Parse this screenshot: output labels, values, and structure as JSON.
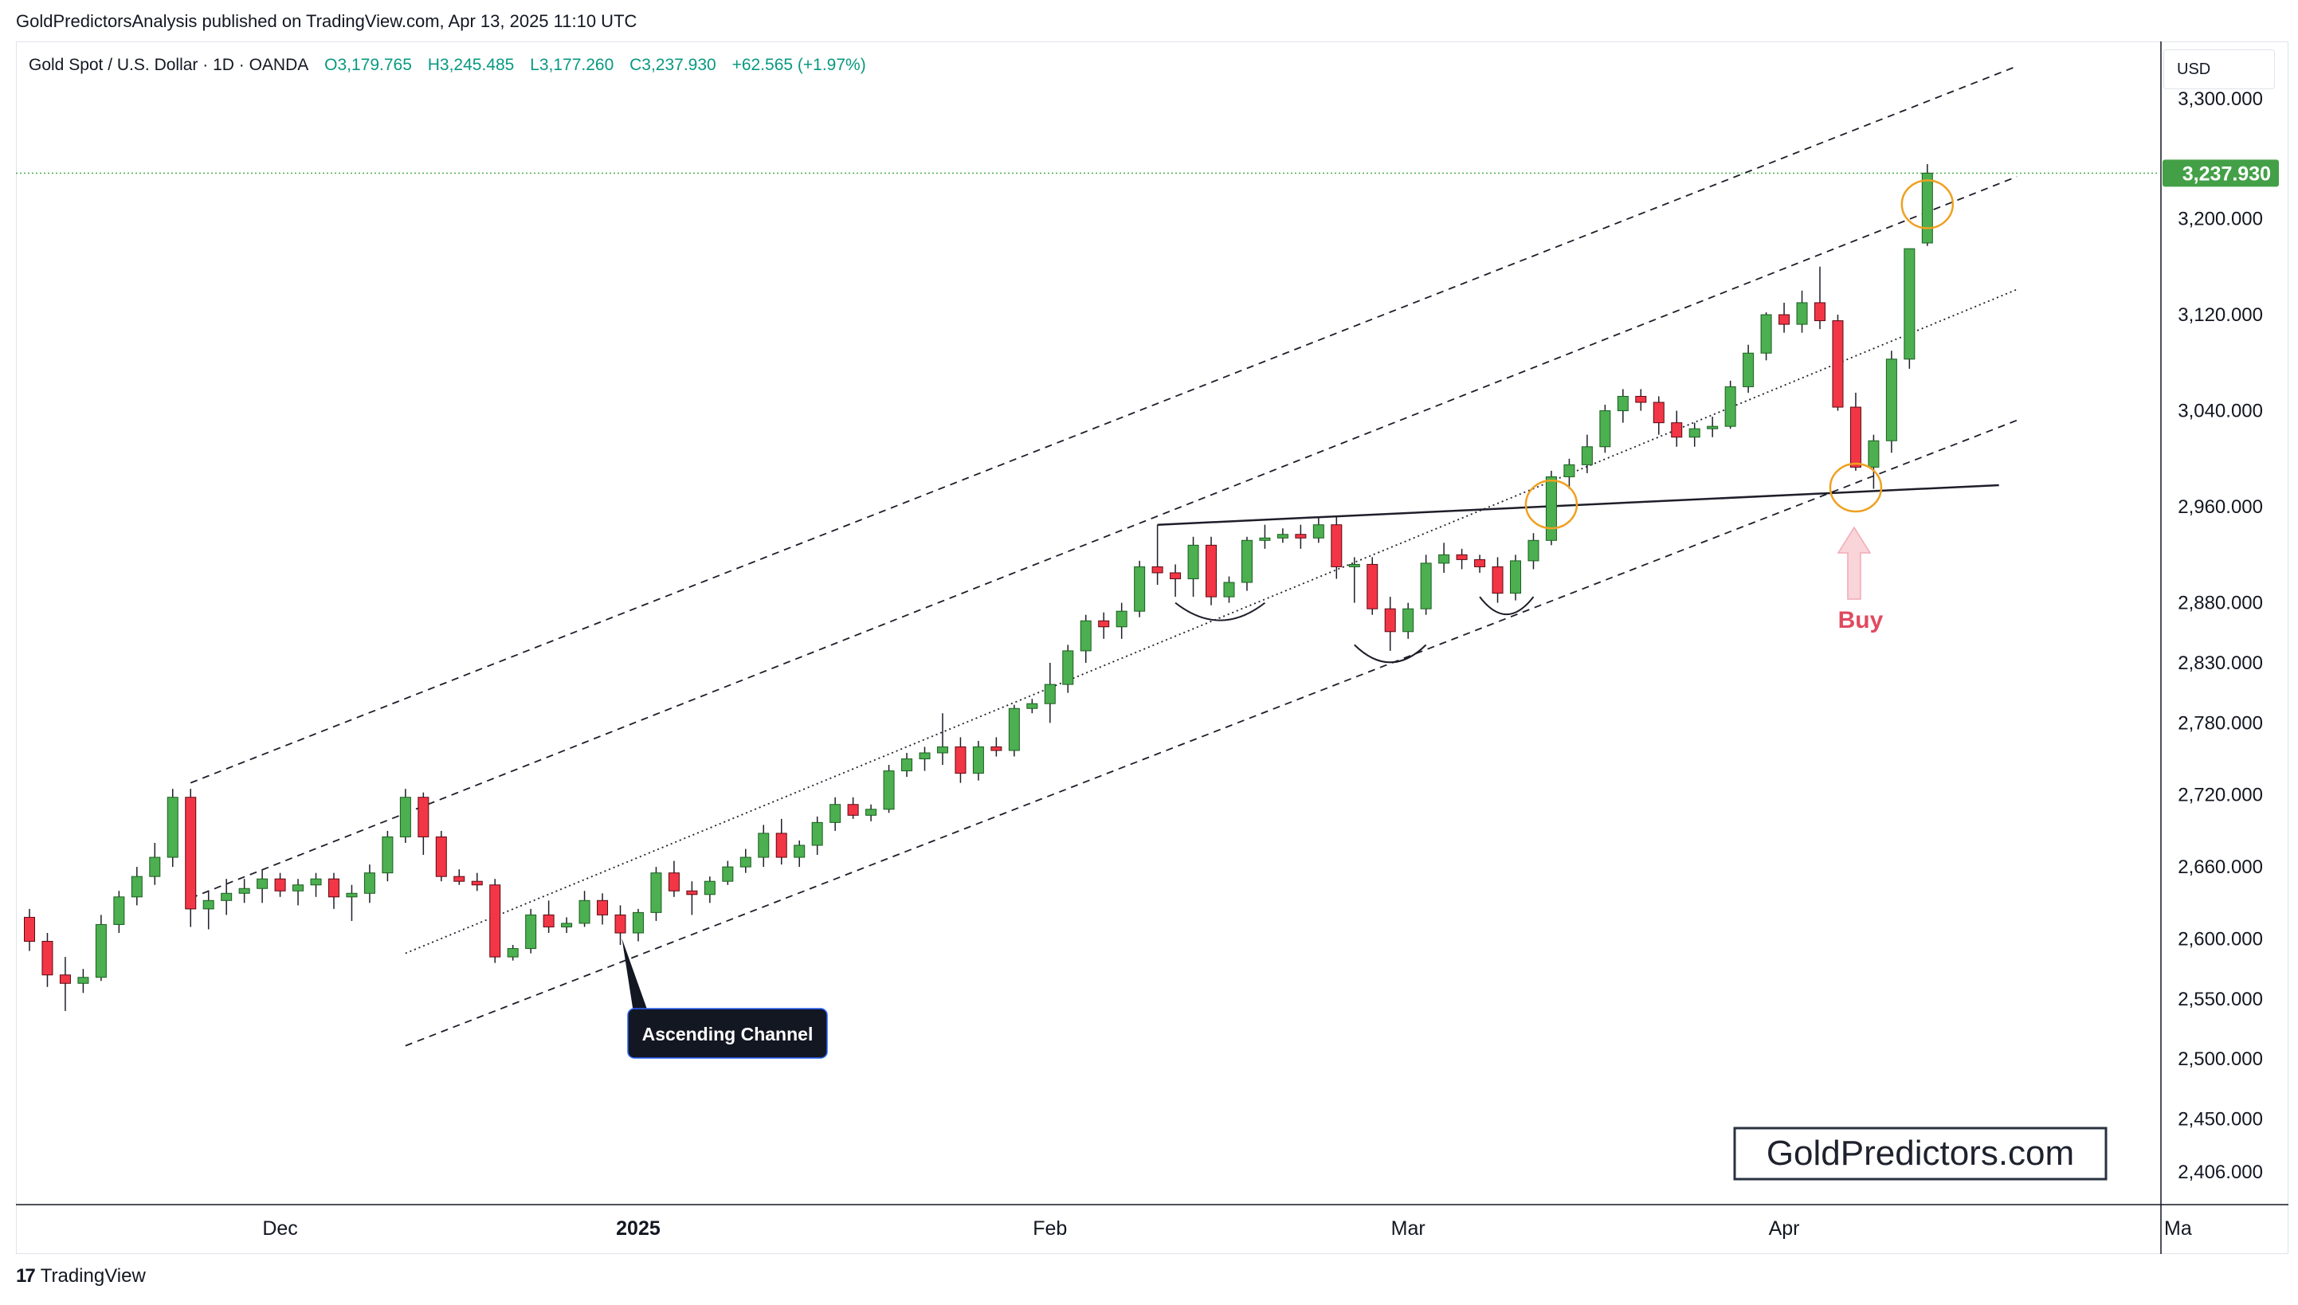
{
  "header": {
    "publisher": "GoldPredictorsAnalysis published on TradingView.com, Apr 13, 2025 11:10 UTC"
  },
  "symbol": {
    "name": "Gold Spot / U.S. Dollar · 1D · OANDA",
    "open": "O3,179.765",
    "high": "H3,245.485",
    "low": "L3,177.260",
    "close": "C3,237.930",
    "change": "+62.565 (+1.97%)"
  },
  "currency": "USD",
  "footer": {
    "brand": "TradingView",
    "logo_glyph": "17"
  },
  "colors": {
    "up": "#4caf50",
    "down": "#f23645",
    "price_tag": "#43a047",
    "highlight": "#f0a020",
    "buy": "#e04a5f"
  },
  "chart_data": {
    "type": "candlestick",
    "instrument": "Gold Spot / U.S. Dollar",
    "timeframe": "1D",
    "ylim": [
      2380,
      3345
    ],
    "y_ticks": [
      3300,
      3200,
      3120,
      3040,
      2960,
      2880,
      2830,
      2780,
      2720,
      2660,
      2600,
      2550,
      2500,
      2450,
      2406
    ],
    "y_tick_labels": [
      "3,300.000",
      "3,200.000",
      "3,120.000",
      "3,040.000",
      "2,960.000",
      "2,880.000",
      "2,830.000",
      "2,780.000",
      "2,720.000",
      "2,660.000",
      "2,600.000",
      "2,550.000",
      "2,500.000",
      "2,450.000",
      "2,406.000"
    ],
    "x_ticks": [
      {
        "label": "Dec",
        "index": 14,
        "bold": false
      },
      {
        "label": "2025",
        "index": 34,
        "bold": true
      },
      {
        "label": "Feb",
        "index": 57,
        "bold": false
      },
      {
        "label": "Mar",
        "index": 77,
        "bold": false
      },
      {
        "label": "Apr",
        "index": 98,
        "bold": false
      },
      {
        "label": "Ma",
        "index": 120,
        "bold": false
      }
    ],
    "candles": [
      [
        2618,
        2625,
        2590,
        2598
      ],
      [
        2598,
        2605,
        2560,
        2570
      ],
      [
        2570,
        2585,
        2540,
        2563
      ],
      [
        2563,
        2575,
        2555,
        2568
      ],
      [
        2568,
        2620,
        2565,
        2612
      ],
      [
        2612,
        2640,
        2605,
        2635
      ],
      [
        2635,
        2660,
        2628,
        2652
      ],
      [
        2652,
        2680,
        2645,
        2668
      ],
      [
        2668,
        2725,
        2660,
        2718
      ],
      [
        2718,
        2725,
        2610,
        2625
      ],
      [
        2625,
        2640,
        2608,
        2632
      ],
      [
        2632,
        2650,
        2620,
        2638
      ],
      [
        2638,
        2650,
        2630,
        2642
      ],
      [
        2642,
        2658,
        2630,
        2650
      ],
      [
        2650,
        2655,
        2635,
        2640
      ],
      [
        2640,
        2650,
        2628,
        2645
      ],
      [
        2645,
        2655,
        2635,
        2650
      ],
      [
        2650,
        2655,
        2625,
        2635
      ],
      [
        2635,
        2645,
        2615,
        2638
      ],
      [
        2638,
        2662,
        2630,
        2655
      ],
      [
        2655,
        2690,
        2648,
        2685
      ],
      [
        2685,
        2725,
        2680,
        2718
      ],
      [
        2718,
        2722,
        2670,
        2685
      ],
      [
        2685,
        2690,
        2648,
        2652
      ],
      [
        2652,
        2658,
        2645,
        2648
      ],
      [
        2648,
        2655,
        2640,
        2645
      ],
      [
        2645,
        2650,
        2580,
        2585
      ],
      [
        2585,
        2595,
        2582,
        2592
      ],
      [
        2592,
        2625,
        2588,
        2620
      ],
      [
        2620,
        2632,
        2605,
        2610
      ],
      [
        2610,
        2618,
        2605,
        2613
      ],
      [
        2613,
        2640,
        2610,
        2632
      ],
      [
        2632,
        2638,
        2612,
        2620
      ],
      [
        2620,
        2628,
        2595,
        2605
      ],
      [
        2605,
        2625,
        2598,
        2622
      ],
      [
        2622,
        2660,
        2615,
        2655
      ],
      [
        2655,
        2665,
        2635,
        2640
      ],
      [
        2640,
        2648,
        2620,
        2637
      ],
      [
        2637,
        2652,
        2630,
        2648
      ],
      [
        2648,
        2665,
        2645,
        2660
      ],
      [
        2660,
        2675,
        2655,
        2668
      ],
      [
        2668,
        2695,
        2660,
        2688
      ],
      [
        2688,
        2700,
        2662,
        2668
      ],
      [
        2668,
        2682,
        2660,
        2678
      ],
      [
        2678,
        2702,
        2670,
        2697
      ],
      [
        2697,
        2718,
        2690,
        2712
      ],
      [
        2712,
        2718,
        2700,
        2703
      ],
      [
        2703,
        2712,
        2698,
        2708
      ],
      [
        2708,
        2745,
        2705,
        2740
      ],
      [
        2740,
        2755,
        2735,
        2750
      ],
      [
        2750,
        2760,
        2740,
        2755
      ],
      [
        2755,
        2788,
        2745,
        2760
      ],
      [
        2760,
        2768,
        2730,
        2738
      ],
      [
        2738,
        2765,
        2732,
        2760
      ],
      [
        2760,
        2768,
        2752,
        2757
      ],
      [
        2757,
        2795,
        2752,
        2792
      ],
      [
        2792,
        2800,
        2788,
        2796
      ],
      [
        2796,
        2830,
        2780,
        2812
      ],
      [
        2812,
        2845,
        2805,
        2840
      ],
      [
        2840,
        2870,
        2830,
        2865
      ],
      [
        2865,
        2872,
        2850,
        2860
      ],
      [
        2860,
        2880,
        2850,
        2873
      ],
      [
        2873,
        2915,
        2868,
        2910
      ],
      [
        2910,
        2945,
        2895,
        2905
      ],
      [
        2905,
        2912,
        2885,
        2900
      ],
      [
        2900,
        2935,
        2885,
        2928
      ],
      [
        2928,
        2935,
        2878,
        2885
      ],
      [
        2885,
        2902,
        2880,
        2897
      ],
      [
        2897,
        2935,
        2890,
        2932
      ],
      [
        2932,
        2945,
        2925,
        2934
      ],
      [
        2934,
        2942,
        2930,
        2937
      ],
      [
        2937,
        2945,
        2925,
        2934
      ],
      [
        2934,
        2952,
        2930,
        2945
      ],
      [
        2945,
        2952,
        2900,
        2910
      ],
      [
        2910,
        2918,
        2880,
        2912
      ],
      [
        2912,
        2918,
        2870,
        2875
      ],
      [
        2875,
        2885,
        2840,
        2856
      ],
      [
        2856,
        2880,
        2850,
        2875
      ],
      [
        2875,
        2920,
        2870,
        2913
      ],
      [
        2913,
        2930,
        2905,
        2920
      ],
      [
        2920,
        2925,
        2908,
        2916
      ],
      [
        2916,
        2920,
        2905,
        2910
      ],
      [
        2910,
        2918,
        2880,
        2888
      ],
      [
        2888,
        2920,
        2882,
        2915
      ],
      [
        2915,
        2938,
        2908,
        2932
      ],
      [
        2932,
        2990,
        2928,
        2985
      ],
      [
        2985,
        3000,
        2975,
        2995
      ],
      [
        2995,
        3020,
        2988,
        3010
      ],
      [
        3010,
        3045,
        3005,
        3040
      ],
      [
        3040,
        3058,
        3030,
        3052
      ],
      [
        3052,
        3058,
        3040,
        3047
      ],
      [
        3047,
        3052,
        3020,
        3030
      ],
      [
        3030,
        3040,
        3010,
        3018
      ],
      [
        3018,
        3030,
        3010,
        3025
      ],
      [
        3025,
        3035,
        3018,
        3027
      ],
      [
        3027,
        3065,
        3025,
        3060
      ],
      [
        3060,
        3095,
        3055,
        3088
      ],
      [
        3088,
        3122,
        3082,
        3120
      ],
      [
        3120,
        3130,
        3105,
        3112
      ],
      [
        3112,
        3140,
        3105,
        3130
      ],
      [
        3130,
        3160,
        3108,
        3115
      ],
      [
        3115,
        3120,
        3040,
        3043
      ],
      [
        3043,
        3055,
        2990,
        2993
      ],
      [
        2993,
        3020,
        2975,
        3015
      ],
      [
        3015,
        3090,
        3005,
        3083
      ],
      [
        3083,
        3175,
        3075,
        3175
      ],
      [
        3179.765,
        3245.485,
        3177.26,
        3237.93
      ]
    ],
    "current_price": "3,237.930",
    "current_price_value": 3237.93,
    "channel": {
      "start_index": 9,
      "end_index": 111,
      "lines": [
        {
          "name": "upper",
          "start": 2730,
          "end": 3327,
          "style": "dashed"
        },
        {
          "name": "upper-mid",
          "start": 2634,
          "end": 3235,
          "style": "dashed"
        },
        {
          "name": "mid",
          "start": 2588,
          "end": 3141,
          "style": "dotted",
          "start_index": 21
        },
        {
          "name": "lower",
          "start": 2511,
          "end": 3032,
          "style": "dashed",
          "start_index": 21
        }
      ]
    },
    "neckline": {
      "start_index": 63,
      "end_index": 110,
      "start": 2945,
      "end": 2978
    },
    "highlights": [
      {
        "index": 85,
        "price": 2962
      },
      {
        "index": 102,
        "price": 2976
      },
      {
        "index": 106,
        "price": 3212
      }
    ],
    "arcs": [
      {
        "index_from": 64,
        "index_to": 69,
        "price": 2880
      },
      {
        "index_from": 74,
        "index_to": 78,
        "price": 2845
      },
      {
        "index_from": 81,
        "index_to": 84,
        "price": 2885
      }
    ],
    "buy_signal": {
      "index": 102,
      "label": "Buy"
    },
    "annotation": {
      "text": "Ascending Channel",
      "index": 33
    },
    "watermark": "GoldPredictors.com"
  }
}
